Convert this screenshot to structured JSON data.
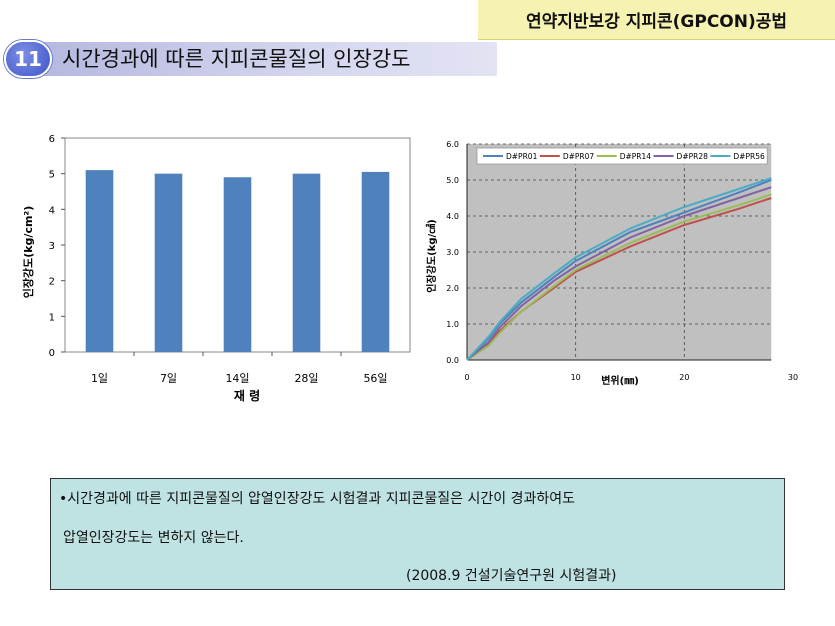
{
  "header": {
    "method_title": "연약지반보강 지피콘(GPCON)공법",
    "section_number": "11",
    "section_title": "시간경과에 따른 지피콘물질의 인장강도"
  },
  "note": {
    "line1": "•시간경과에 따른 지피콘물질의 압열인장강도 시험결과 지피콘물질은 시간이 경과하여도",
    "line2": "압열인장강도는 변하지 않는다.",
    "source": "(2008.9 건설기술연구원 시험결과)"
  },
  "colors": {
    "bar": "#4f81bd",
    "plot_bg": "#c0c0c0"
  },
  "chart_data": [
    {
      "type": "bar",
      "categories": [
        "1일",
        "7일",
        "14일",
        "28일",
        "56일"
      ],
      "values": [
        5.1,
        5.0,
        4.9,
        5.0,
        5.05
      ],
      "xlabel": "재 령",
      "ylabel": "인장강도(kg/cm²)",
      "ylim": [
        0,
        6
      ],
      "yticks": [
        "0",
        "1",
        "2",
        "3",
        "4",
        "5",
        "6"
      ],
      "grid": false
    },
    {
      "type": "line",
      "xlabel": "변위(㎜)",
      "ylabel": "인장강도(kg/㎠)",
      "xlim": [
        0,
        30
      ],
      "ylim": [
        0,
        6
      ],
      "xticks": [
        "0",
        "10",
        "20",
        "30"
      ],
      "yticks": [
        "0.0",
        "1.0",
        "2.0",
        "3.0",
        "4.0",
        "5.0",
        "6.0"
      ],
      "grid": true,
      "legend": "top",
      "series": [
        {
          "name": "D#PR01",
          "color": "#4f81bd",
          "points": [
            [
              0,
              0
            ],
            [
              2,
              0.6
            ],
            [
              3,
              1.0
            ],
            [
              5,
              1.6
            ],
            [
              8,
              2.3
            ],
            [
              10,
              2.75
            ],
            [
              15,
              3.55
            ],
            [
              20,
              4.1
            ],
            [
              25,
              4.65
            ],
            [
              28,
              5.0
            ]
          ]
        },
        {
          "name": "D#PR07",
          "color": "#c0504d",
          "points": [
            [
              0,
              0
            ],
            [
              2,
              0.45
            ],
            [
              3,
              0.8
            ],
            [
              5,
              1.35
            ],
            [
              8,
              2.0
            ],
            [
              10,
              2.45
            ],
            [
              15,
              3.15
            ],
            [
              20,
              3.75
            ],
            [
              25,
              4.2
            ],
            [
              28,
              4.5
            ]
          ]
        },
        {
          "name": "D#PR14",
          "color": "#9bbb59",
          "points": [
            [
              0,
              0
            ],
            [
              2,
              0.4
            ],
            [
              3,
              0.75
            ],
            [
              5,
              1.35
            ],
            [
              8,
              2.05
            ],
            [
              10,
              2.5
            ],
            [
              15,
              3.25
            ],
            [
              20,
              3.85
            ],
            [
              25,
              4.3
            ],
            [
              28,
              4.6
            ]
          ]
        },
        {
          "name": "D#PR28",
          "color": "#8064a2",
          "points": [
            [
              0,
              0
            ],
            [
              2,
              0.5
            ],
            [
              3,
              0.9
            ],
            [
              5,
              1.5
            ],
            [
              8,
              2.2
            ],
            [
              10,
              2.6
            ],
            [
              15,
              3.4
            ],
            [
              20,
              4.0
            ],
            [
              25,
              4.5
            ],
            [
              28,
              4.8
            ]
          ]
        },
        {
          "name": "D#PR56",
          "color": "#4bacc6",
          "points": [
            [
              0,
              0
            ],
            [
              2,
              0.65
            ],
            [
              3,
              1.05
            ],
            [
              5,
              1.7
            ],
            [
              8,
              2.4
            ],
            [
              10,
              2.85
            ],
            [
              15,
              3.65
            ],
            [
              20,
              4.25
            ],
            [
              25,
              4.75
            ],
            [
              28,
              5.05
            ]
          ]
        }
      ]
    }
  ]
}
